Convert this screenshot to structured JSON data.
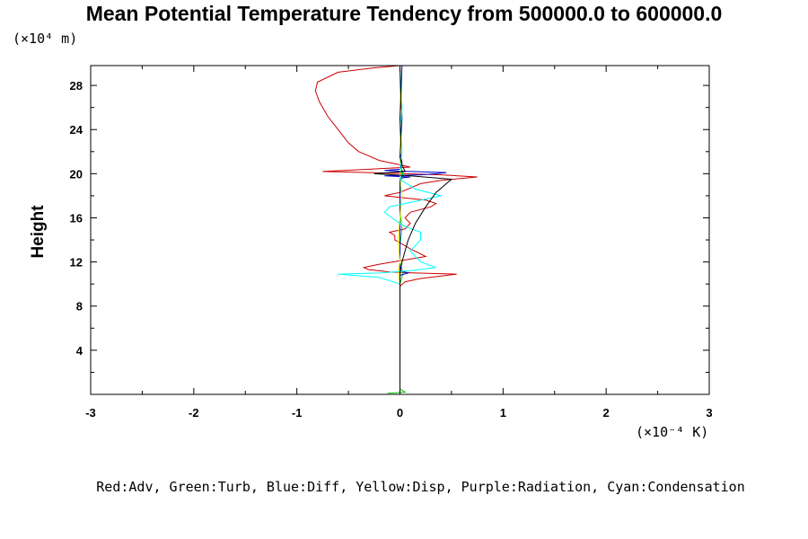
{
  "chart_data": {
    "type": "line",
    "title": "Mean Potential Temperature Tendency from 500000.0 to 600000.0",
    "ylabel": "Height",
    "xunit": "(×10⁻⁴ K)",
    "yunit": "(×10⁴ m)",
    "legend_text": "Red:Adv, Green:Turb, Blue:Diff, Yellow:Disp, Purple:Radiation, Cyan:Condensation",
    "xlim": [
      -3,
      3
    ],
    "ylim": [
      0,
      29.8
    ],
    "xticks": [
      "-3",
      "-2",
      "-1",
      "0",
      "1",
      "2",
      "3"
    ],
    "yticks": [
      "4",
      "8",
      "12",
      "16",
      "20",
      "24",
      "28"
    ],
    "xtick_values": [
      -3,
      -2,
      -1,
      0,
      1,
      2,
      3
    ],
    "ytick_values": [
      4,
      8,
      12,
      16,
      20,
      24,
      28
    ],
    "series": [
      {
        "color": "#cc0000",
        "points": [
          [
            0,
            0
          ],
          [
            0,
            9.8
          ],
          [
            0.05,
            10.2
          ],
          [
            0.2,
            10.5
          ],
          [
            0.55,
            10.9
          ],
          [
            0.15,
            11.0
          ],
          [
            -0.1,
            11.1
          ],
          [
            -0.2,
            11.2
          ],
          [
            -0.3,
            11.3
          ],
          [
            -0.35,
            11.5
          ],
          [
            -0.2,
            11.8
          ],
          [
            0.25,
            12.5
          ],
          [
            0.1,
            13.2
          ],
          [
            -0.05,
            14.0
          ],
          [
            -0.05,
            14.4
          ],
          [
            -0.1,
            14.7
          ],
          [
            0.05,
            15.0
          ],
          [
            0.1,
            15.5
          ],
          [
            0.05,
            16.0
          ],
          [
            0.1,
            16.5
          ],
          [
            0.3,
            17.0
          ],
          [
            0.35,
            17.3
          ],
          [
            0.25,
            17.6
          ],
          [
            0.05,
            17.8
          ],
          [
            -0.15,
            18.0
          ],
          [
            0,
            18.3
          ],
          [
            0.1,
            18.7
          ],
          [
            0.2,
            19.1
          ],
          [
            0.4,
            19.4
          ],
          [
            0.75,
            19.7
          ],
          [
            0.4,
            19.9
          ],
          [
            0.05,
            20.0
          ],
          [
            -0.3,
            20.1
          ],
          [
            -0.75,
            20.2
          ],
          [
            -0.3,
            20.4
          ],
          [
            0.1,
            20.6
          ],
          [
            -0.05,
            20.9
          ],
          [
            -0.2,
            21.2
          ],
          [
            -0.3,
            21.6
          ],
          [
            -0.4,
            22.0
          ],
          [
            -0.5,
            22.8
          ],
          [
            -0.6,
            24.0
          ],
          [
            -0.7,
            25.2
          ],
          [
            -0.78,
            26.5
          ],
          [
            -0.82,
            27.5
          ],
          [
            -0.8,
            28.3
          ],
          [
            -0.6,
            29.2
          ],
          [
            -0.25,
            29.6
          ],
          [
            0,
            29.8
          ]
        ]
      },
      {
        "color": "#00cc00",
        "points": [
          [
            -0.12,
            0.1
          ],
          [
            0.05,
            0.2
          ],
          [
            0,
            0.5
          ],
          [
            0,
            10.0
          ],
          [
            0.03,
            11.0
          ],
          [
            0,
            12.0
          ],
          [
            0,
            13.5
          ],
          [
            0.02,
            15.0
          ],
          [
            0,
            16.5
          ],
          [
            0.02,
            18.0
          ],
          [
            0,
            19.0
          ],
          [
            0.03,
            20.0
          ],
          [
            0,
            21.0
          ],
          [
            0,
            29.8
          ]
        ]
      },
      {
        "color": "#0000cc",
        "points": [
          [
            0,
            0
          ],
          [
            0,
            10.8
          ],
          [
            0.08,
            11.0
          ],
          [
            0,
            11.2
          ],
          [
            0,
            19.6
          ],
          [
            0.1,
            19.7
          ],
          [
            -0.15,
            19.8
          ],
          [
            0.2,
            19.9
          ],
          [
            0.35,
            20.0
          ],
          [
            0.45,
            20.1
          ],
          [
            0.1,
            20.2
          ],
          [
            -0.15,
            20.3
          ],
          [
            0,
            20.4
          ],
          [
            0.02,
            21.0
          ],
          [
            0.0,
            22.0
          ],
          [
            0.02,
            25.0
          ],
          [
            0.01,
            27.0
          ],
          [
            0.02,
            29.8
          ]
        ]
      },
      {
        "color": "#ffff00",
        "points": [
          [
            0,
            0
          ],
          [
            0,
            10.0
          ],
          [
            -0.02,
            11.0
          ],
          [
            0,
            12.0
          ],
          [
            -0.02,
            14.0
          ],
          [
            0,
            16.0
          ],
          [
            0.02,
            18.0
          ],
          [
            0,
            20.0
          ],
          [
            0,
            29.8
          ]
        ]
      },
      {
        "color": "#00ffff",
        "points": [
          [
            0,
            0
          ],
          [
            0,
            10.0
          ],
          [
            -0.2,
            10.6
          ],
          [
            -0.6,
            10.9
          ],
          [
            -0.2,
            11.0
          ],
          [
            0.1,
            11.2
          ],
          [
            0.35,
            11.5
          ],
          [
            0.2,
            12.0
          ],
          [
            0.1,
            13.0
          ],
          [
            0.2,
            14.0
          ],
          [
            0.2,
            14.7
          ],
          [
            0.05,
            15.2
          ],
          [
            -0.05,
            15.8
          ],
          [
            -0.15,
            16.5
          ],
          [
            -0.1,
            17.0
          ],
          [
            0.15,
            17.5
          ],
          [
            0.4,
            18.0
          ],
          [
            0.15,
            18.6
          ],
          [
            0.05,
            19.2
          ],
          [
            0,
            19.5
          ],
          [
            0.02,
            20.0
          ],
          [
            0,
            20.5
          ],
          [
            0.02,
            22.0
          ],
          [
            0,
            24.0
          ],
          [
            0.02,
            26.0
          ],
          [
            0,
            28.0
          ],
          [
            0,
            29.8
          ]
        ]
      },
      {
        "color": "#000000",
        "points": [
          [
            0,
            0
          ],
          [
            0,
            10.0
          ],
          [
            0,
            11.0
          ],
          [
            0.02,
            12.0
          ],
          [
            0.05,
            13.0
          ],
          [
            0.08,
            14.0
          ],
          [
            0.15,
            15.5
          ],
          [
            0.25,
            17.0
          ],
          [
            0.35,
            18.3
          ],
          [
            0.5,
            19.5
          ],
          [
            0.1,
            19.8
          ],
          [
            -0.25,
            20.0
          ],
          [
            0.05,
            20.2
          ],
          [
            0.02,
            20.8
          ],
          [
            0,
            21.5
          ],
          [
            0.01,
            23.0
          ],
          [
            0,
            25.0
          ],
          [
            0.01,
            27.0
          ],
          [
            0,
            29.8
          ]
        ]
      }
    ]
  }
}
